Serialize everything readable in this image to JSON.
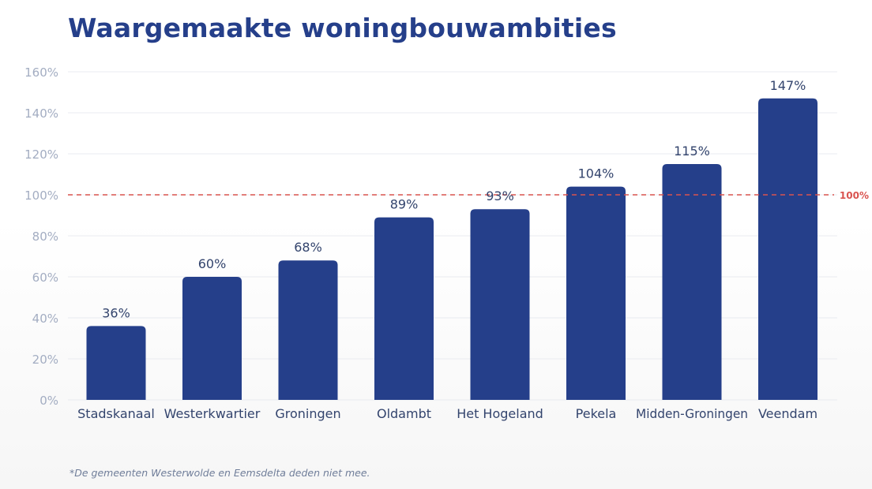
{
  "title": "Waargemaakte woningbouwambities",
  "footnote": "*De gemeenten Westerwolde en Eemsdelta deden niet mee.",
  "colors": {
    "bar": "#253f8a",
    "title": "#253f8a",
    "axis_label": "#a3adc2",
    "grid": "#e9ebf0",
    "reference_line": "#d9534f",
    "value_label": "#33446d",
    "category_label": "#33446d"
  },
  "chart_data": {
    "type": "bar",
    "categories": [
      "Stadskanaal",
      "Westerkwartier",
      "Groningen",
      "Oldambt",
      "Het Hogeland",
      "Pekela",
      "Midden-Groningen",
      "Veendam"
    ],
    "values": [
      36,
      60,
      68,
      89,
      93,
      104,
      115,
      147
    ],
    "value_labels": [
      "36%",
      "60%",
      "68%",
      "89%",
      "93%",
      "104%",
      "115%",
      "147%"
    ],
    "yticks": [
      "0%",
      "20%",
      "40%",
      "60%",
      "80%",
      "100%",
      "120%",
      "140%",
      "160%"
    ],
    "ylim": [
      0,
      160
    ],
    "grid": true,
    "reference_line": {
      "value": 100,
      "label": "100%",
      "style": "dashed"
    }
  }
}
